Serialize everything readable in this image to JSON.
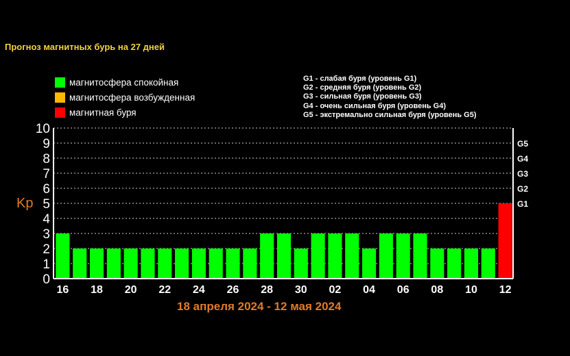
{
  "header": {
    "title": "Прогноз магнитных бурь на 27 дней"
  },
  "legend": {
    "items": [
      {
        "label": "магнитосфера спокойная",
        "color": "#00ff00"
      },
      {
        "label": "магнитосфера возбужденная",
        "color": "#ffb800"
      },
      {
        "label": "магнитная буря",
        "color": "#ff0000"
      }
    ]
  },
  "storm_levels": [
    "G1 - слабая буря (уровень G1)",
    "G2 - средняя буря (уровень G2)",
    "G3 - сильная буря (уровень G3)",
    "G4 - очень сильная буря (уровень G4)",
    "G5 - экстремально сильная буря (уровень G5)"
  ],
  "footer": {
    "date_range": "18 апреля 2024 - 12 мая 2024"
  },
  "chart_data": {
    "type": "bar",
    "ylabel": "Kp",
    "ylim": [
      0,
      10
    ],
    "y_ticks": [
      "0",
      "1",
      "2",
      "3",
      "4",
      "5",
      "6",
      "7",
      "8",
      "9",
      "10"
    ],
    "grid": true,
    "right_axis_labels": [
      {
        "y": 5,
        "label": "G1"
      },
      {
        "y": 6,
        "label": "G2"
      },
      {
        "y": 7,
        "label": "G3"
      },
      {
        "y": 8,
        "label": "G4"
      },
      {
        "y": 9,
        "label": "G5"
      }
    ],
    "x_tick_labels": [
      "16",
      "18",
      "20",
      "22",
      "24",
      "26",
      "28",
      "30",
      "02",
      "04",
      "06",
      "08",
      "10",
      "12"
    ],
    "values": [
      3,
      2,
      2,
      2,
      2,
      2,
      2,
      2,
      2,
      2,
      2,
      2,
      3,
      3,
      2,
      3,
      3,
      3,
      2,
      3,
      3,
      3,
      2,
      2,
      2,
      2,
      5
    ],
    "colors": [
      "#00ff00",
      "#00ff00",
      "#00ff00",
      "#00ff00",
      "#00ff00",
      "#00ff00",
      "#00ff00",
      "#00ff00",
      "#00ff00",
      "#00ff00",
      "#00ff00",
      "#00ff00",
      "#00ff00",
      "#00ff00",
      "#00ff00",
      "#00ff00",
      "#00ff00",
      "#00ff00",
      "#00ff00",
      "#00ff00",
      "#00ff00",
      "#00ff00",
      "#00ff00",
      "#00ff00",
      "#00ff00",
      "#00ff00",
      "#ff0000"
    ]
  }
}
